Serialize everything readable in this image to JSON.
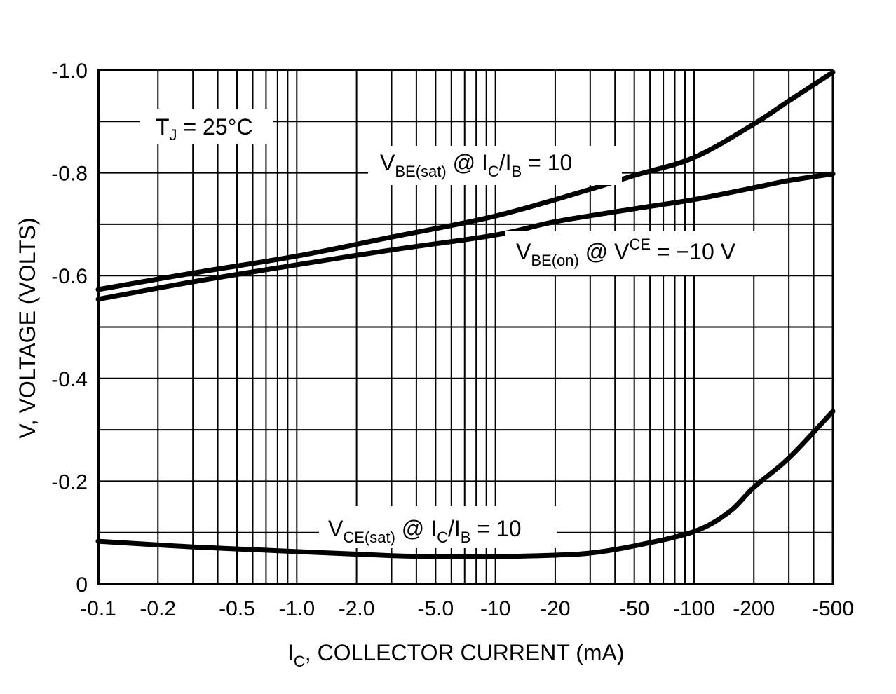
{
  "chart_data": {
    "type": "line",
    "xscale": "log",
    "xlabel_main": "I",
    "xlabel_sub": "C",
    "xlabel_rest": ", COLLECTOR CURRENT (mA)",
    "ylabel": "V, VOLTAGE (VOLTS)",
    "xlim": [
      0.1,
      500
    ],
    "ylim": [
      0,
      1.0
    ],
    "x_ticks": [
      0.1,
      0.2,
      0.5,
      1,
      2,
      5,
      10,
      20,
      50,
      100,
      200,
      500
    ],
    "x_tick_labels": [
      "-0.1",
      "-0.2",
      "-0.5",
      "-1.0",
      "-2.0",
      "-5.0",
      "-10",
      "-20",
      "-50",
      "-100",
      "-200",
      "-500"
    ],
    "y_ticks": [
      0,
      0.2,
      0.4,
      0.6,
      0.8,
      1.0
    ],
    "y_tick_labels": [
      "0",
      "-0.2",
      "-0.4",
      "-0.6",
      "-0.8",
      "-1.0"
    ],
    "grid": true,
    "annotations": {
      "temp": {
        "main": "T",
        "sub": "J",
        "rest": " = 25°C"
      },
      "vbe_sat": {
        "main": "V",
        "sub": "BE(sat)",
        "mid": " @ I",
        "sub2": "C",
        "mid2": "/I",
        "sub3": "B",
        "rest": " = 10"
      },
      "vbe_on": {
        "main": "V",
        "sub": "BE(on)",
        "mid": " @ V",
        "sup": "CE",
        "rest": " = −10 V"
      },
      "vce_sat": {
        "main": "V",
        "sub": "CE(sat)",
        "mid": " @ I",
        "sub2": "C",
        "mid2": "/I",
        "sub3": "B",
        "rest": " = 10"
      }
    },
    "series": [
      {
        "name": "VBE(sat) @ IC/IB = 10",
        "x": [
          0.1,
          0.3,
          1,
          3,
          10,
          30,
          50,
          100,
          200,
          300,
          500
        ],
        "y": [
          0.573,
          0.605,
          0.638,
          0.675,
          0.716,
          0.768,
          0.795,
          0.83,
          0.895,
          0.94,
          0.996
        ]
      },
      {
        "name": "VBE(on) @ VCE = -10 V",
        "x": [
          0.1,
          0.3,
          1,
          3,
          10,
          20,
          50,
          100,
          200,
          300,
          500
        ],
        "y": [
          0.554,
          0.588,
          0.621,
          0.65,
          0.679,
          0.705,
          0.73,
          0.748,
          0.771,
          0.785,
          0.798
        ]
      },
      {
        "name": "VCE(sat) @ IC/IB = 10",
        "x": [
          0.1,
          0.3,
          1,
          3,
          5,
          10,
          20,
          30,
          50,
          100,
          150,
          200,
          300,
          500
        ],
        "y": [
          0.083,
          0.072,
          0.063,
          0.055,
          0.053,
          0.053,
          0.056,
          0.06,
          0.074,
          0.102,
          0.14,
          0.188,
          0.245,
          0.336
        ]
      }
    ],
    "line_color": "#000000"
  }
}
